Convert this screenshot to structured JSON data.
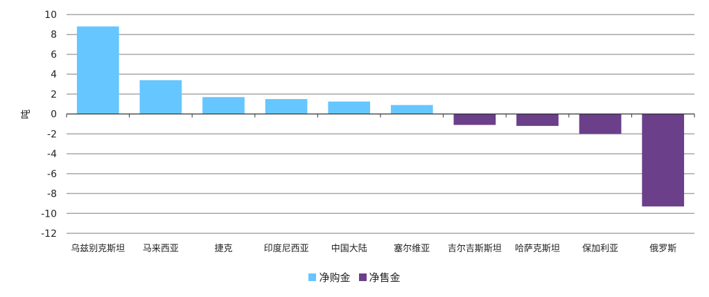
{
  "chart_data": {
    "type": "bar",
    "title": "",
    "xlabel": "",
    "ylabel": "吨",
    "ylim": [
      -12,
      10
    ],
    "yticks": [
      10,
      8,
      6,
      4,
      2,
      0,
      -2,
      -4,
      -6,
      -8,
      -10,
      -12
    ],
    "grid": true,
    "legend_position": "bottom",
    "categories": [
      "乌兹别克斯坦",
      "马来西亚",
      "捷克",
      "印度尼西亚",
      "中国大陆",
      "塞尔维亚",
      "吉尔吉斯斯坦",
      "哈萨克斯坦",
      "保加利亚",
      "俄罗斯"
    ],
    "values": [
      8.8,
      3.4,
      1.7,
      1.5,
      1.25,
      0.9,
      -1.1,
      -1.2,
      -2.0,
      -9.3
    ],
    "series": [
      {
        "name": "净购金",
        "color": "#66c6ff",
        "values": [
          8.8,
          3.4,
          1.7,
          1.5,
          1.25,
          0.9,
          null,
          null,
          null,
          null
        ]
      },
      {
        "name": "净售金",
        "color": "#6b3f8a",
        "values": [
          null,
          null,
          null,
          null,
          null,
          null,
          -1.1,
          -1.2,
          -2.0,
          -9.3
        ]
      }
    ]
  },
  "legend": {
    "items": [
      {
        "label": "净购金",
        "color": "#66c6ff"
      },
      {
        "label": "净售金",
        "color": "#6b3f8a"
      }
    ]
  }
}
